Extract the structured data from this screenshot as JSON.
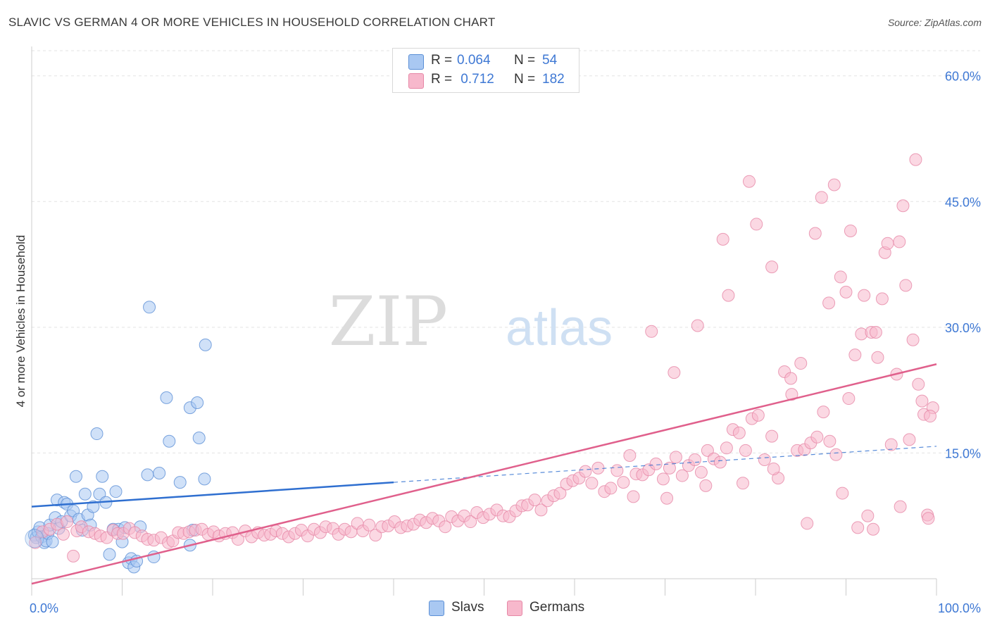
{
  "header": {
    "title": "SLAVIC VS GERMAN 4 OR MORE VEHICLES IN HOUSEHOLD CORRELATION CHART",
    "source": "Source: ZipAtlas.com"
  },
  "legend_top": {
    "rows": [
      {
        "r_label": "R = ",
        "r_value": "0.064",
        "n_label": "N = ",
        "n_value": "54",
        "color": "#a9c8f2"
      },
      {
        "r_label": "R = ",
        "r_value": " 0.712",
        "n_label": "N = ",
        "n_value": "182",
        "color": "#f7b8cc"
      }
    ]
  },
  "legend_bottom": {
    "items": [
      {
        "label": "Slavs",
        "color": "#a9c8f2"
      },
      {
        "label": "Germans",
        "color": "#f7b8cc"
      }
    ]
  },
  "chart_data": {
    "type": "scatter",
    "title": "SLAVIC VS GERMAN 4 OR MORE VEHICLES IN HOUSEHOLD CORRELATION CHART",
    "ylabel": "4 or more Vehicles in Household",
    "xlabel": "",
    "xlim": [
      0,
      100
    ],
    "ylim": [
      0,
      63
    ],
    "x_tick_labels": [
      "0.0%",
      "100.0%"
    ],
    "y_ticks": [
      15,
      30,
      45,
      60
    ],
    "y_tick_labels": [
      "15.0%",
      "30.0%",
      "45.0%",
      "60.0%"
    ],
    "grid": true,
    "watermark": {
      "zip": "ZIP",
      "atlas": "atlas"
    },
    "colors": {
      "slavs_fill": "#a9c8f2",
      "slavs_stroke": "#5b8fd6",
      "slavs_line": "#2f6fd0",
      "germans_fill": "#f7b8cc",
      "germans_stroke": "#e687a6",
      "germans_line": "#e0608c",
      "tick_label": "#3e78d4"
    },
    "series": [
      {
        "name": "Slavs",
        "trend": {
          "x": [
            0,
            40
          ],
          "y": [
            8.6,
            11.5
          ],
          "dashed_x": [
            40,
            100
          ],
          "dashed_y": [
            11.5,
            15.8
          ]
        },
        "points": [
          [
            0.3,
            5.2
          ],
          [
            0.5,
            4.9
          ],
          [
            0.7,
            5.6
          ],
          [
            0.9,
            6.1
          ],
          [
            1.1,
            5.0
          ],
          [
            1.4,
            4.3
          ],
          [
            1.6,
            4.5
          ],
          [
            1.8,
            5.4
          ],
          [
            2.0,
            6.4
          ],
          [
            2.3,
            4.4
          ],
          [
            2.6,
            7.3
          ],
          [
            2.8,
            9.4
          ],
          [
            3.0,
            6.0
          ],
          [
            3.3,
            6.8
          ],
          [
            3.6,
            9.1
          ],
          [
            3.9,
            8.9
          ],
          [
            4.3,
            7.5
          ],
          [
            4.6,
            8.1
          ],
          [
            4.9,
            12.2
          ],
          [
            5.2,
            7.1
          ],
          [
            5.6,
            5.8
          ],
          [
            5.9,
            10.1
          ],
          [
            6.2,
            7.6
          ],
          [
            6.5,
            6.4
          ],
          [
            6.8,
            8.6
          ],
          [
            7.2,
            17.3
          ],
          [
            7.5,
            10.1
          ],
          [
            7.8,
            12.2
          ],
          [
            8.2,
            9.1
          ],
          [
            8.6,
            2.9
          ],
          [
            9.0,
            5.9
          ],
          [
            9.3,
            10.4
          ],
          [
            9.6,
            5.9
          ],
          [
            10.0,
            4.4
          ],
          [
            10.3,
            6.1
          ],
          [
            10.7,
            1.9
          ],
          [
            11.0,
            2.4
          ],
          [
            11.3,
            1.4
          ],
          [
            11.6,
            2.1
          ],
          [
            12.0,
            6.2
          ],
          [
            12.8,
            12.4
          ],
          [
            13.0,
            32.4
          ],
          [
            13.5,
            2.6
          ],
          [
            14.1,
            12.6
          ],
          [
            14.9,
            21.6
          ],
          [
            15.2,
            16.4
          ],
          [
            16.4,
            11.5
          ],
          [
            17.5,
            20.4
          ],
          [
            17.5,
            4.0
          ],
          [
            17.8,
            5.8
          ],
          [
            18.3,
            21.0
          ],
          [
            18.5,
            16.8
          ],
          [
            19.1,
            11.9
          ],
          [
            19.2,
            27.9
          ]
        ]
      },
      {
        "name": "Germans",
        "trend": {
          "x": [
            0,
            100
          ],
          "y": [
            -0.6,
            25.6
          ]
        },
        "points": [
          [
            0.4,
            4.3
          ],
          [
            1.2,
            5.6
          ],
          [
            2.0,
            5.9
          ],
          [
            2.8,
            6.5
          ],
          [
            3.5,
            5.3
          ],
          [
            3.9,
            6.8
          ],
          [
            4.6,
            2.7
          ],
          [
            5.0,
            5.7
          ],
          [
            5.5,
            6.2
          ],
          [
            6.3,
            5.6
          ],
          [
            7.0,
            5.4
          ],
          [
            7.6,
            5.1
          ],
          [
            8.3,
            4.9
          ],
          [
            9.0,
            5.8
          ],
          [
            9.5,
            5.4
          ],
          [
            10.1,
            5.4
          ],
          [
            10.8,
            6.0
          ],
          [
            11.4,
            5.5
          ],
          [
            12.2,
            5.1
          ],
          [
            12.8,
            4.7
          ],
          [
            13.5,
            4.6
          ],
          [
            14.3,
            4.9
          ],
          [
            15.1,
            4.3
          ],
          [
            15.6,
            4.5
          ],
          [
            16.2,
            5.5
          ],
          [
            16.8,
            5.4
          ],
          [
            17.4,
            5.6
          ],
          [
            18.1,
            5.8
          ],
          [
            18.8,
            5.9
          ],
          [
            19.5,
            5.3
          ],
          [
            20.1,
            5.6
          ],
          [
            20.7,
            5.1
          ],
          [
            21.4,
            5.4
          ],
          [
            22.2,
            5.5
          ],
          [
            22.8,
            4.7
          ],
          [
            23.6,
            5.7
          ],
          [
            24.3,
            5.0
          ],
          [
            25.0,
            5.5
          ],
          [
            25.7,
            5.2
          ],
          [
            26.4,
            5.3
          ],
          [
            27.0,
            5.7
          ],
          [
            27.7,
            5.4
          ],
          [
            28.4,
            5.0
          ],
          [
            29.1,
            5.4
          ],
          [
            29.8,
            5.8
          ],
          [
            30.5,
            5.1
          ],
          [
            31.2,
            5.9
          ],
          [
            31.9,
            5.5
          ],
          [
            32.5,
            6.2
          ],
          [
            33.3,
            6.0
          ],
          [
            33.9,
            5.3
          ],
          [
            34.6,
            5.9
          ],
          [
            35.3,
            5.6
          ],
          [
            36.0,
            6.6
          ],
          [
            36.6,
            5.7
          ],
          [
            37.3,
            6.4
          ],
          [
            38.0,
            5.2
          ],
          [
            38.7,
            6.2
          ],
          [
            39.4,
            6.3
          ],
          [
            40.1,
            6.8
          ],
          [
            40.8,
            6.1
          ],
          [
            41.5,
            6.3
          ],
          [
            42.2,
            6.5
          ],
          [
            42.9,
            7.0
          ],
          [
            43.6,
            6.7
          ],
          [
            44.3,
            7.2
          ],
          [
            45.0,
            6.9
          ],
          [
            45.7,
            6.2
          ],
          [
            46.4,
            7.4
          ],
          [
            47.1,
            6.9
          ],
          [
            47.8,
            7.5
          ],
          [
            48.5,
            6.8
          ],
          [
            49.2,
            7.9
          ],
          [
            49.9,
            7.3
          ],
          [
            50.6,
            7.7
          ],
          [
            51.4,
            8.2
          ],
          [
            52.1,
            7.5
          ],
          [
            52.8,
            7.4
          ],
          [
            53.5,
            8.1
          ],
          [
            54.2,
            8.7
          ],
          [
            54.8,
            8.8
          ],
          [
            55.6,
            9.4
          ],
          [
            56.3,
            8.2
          ],
          [
            57.0,
            9.3
          ],
          [
            57.7,
            9.9
          ],
          [
            58.4,
            10.2
          ],
          [
            59.1,
            11.3
          ],
          [
            59.8,
            11.7
          ],
          [
            60.5,
            12.0
          ],
          [
            61.2,
            12.8
          ],
          [
            61.9,
            11.4
          ],
          [
            62.6,
            13.2
          ],
          [
            63.3,
            10.4
          ],
          [
            64.0,
            10.8
          ],
          [
            64.7,
            12.9
          ],
          [
            65.4,
            11.5
          ],
          [
            66.1,
            14.7
          ],
          [
            66.8,
            12.5
          ],
          [
            67.5,
            12.4
          ],
          [
            68.2,
            13.0
          ],
          [
            69.0,
            13.7
          ],
          [
            69.8,
            11.9
          ],
          [
            70.5,
            13.2
          ],
          [
            71.2,
            14.5
          ],
          [
            71.9,
            12.3
          ],
          [
            72.6,
            13.5
          ],
          [
            73.3,
            14.2
          ],
          [
            74.0,
            12.7
          ],
          [
            74.7,
            15.3
          ],
          [
            75.4,
            14.3
          ],
          [
            76.1,
            13.9
          ],
          [
            76.8,
            15.6
          ],
          [
            77.5,
            17.8
          ],
          [
            78.2,
            17.4
          ],
          [
            78.9,
            15.3
          ],
          [
            79.6,
            19.1
          ],
          [
            80.3,
            19.5
          ],
          [
            81.0,
            14.2
          ],
          [
            81.8,
            17.0
          ],
          [
            82.5,
            12.0
          ],
          [
            83.2,
            24.7
          ],
          [
            83.9,
            23.9
          ],
          [
            84.6,
            15.3
          ],
          [
            85.4,
            15.4
          ],
          [
            86.1,
            16.2
          ],
          [
            86.8,
            16.9
          ],
          [
            87.5,
            19.9
          ],
          [
            88.2,
            16.4
          ],
          [
            88.9,
            14.8
          ],
          [
            89.6,
            10.2
          ],
          [
            90.3,
            21.5
          ],
          [
            91.0,
            26.7
          ],
          [
            91.7,
            29.2
          ],
          [
            92.4,
            7.5
          ],
          [
            92.8,
            29.4
          ],
          [
            93.5,
            26.4
          ],
          [
            94.3,
            38.9
          ],
          [
            95.0,
            16.0
          ],
          [
            95.6,
            24.4
          ],
          [
            96.3,
            44.5
          ],
          [
            97.0,
            16.6
          ],
          [
            97.7,
            50.0
          ],
          [
            98.4,
            21.2
          ],
          [
            99.0,
            7.6
          ],
          [
            99.6,
            20.4
          ],
          [
            68.5,
            29.5
          ],
          [
            71.0,
            24.6
          ],
          [
            73.6,
            30.2
          ],
          [
            76.4,
            40.5
          ],
          [
            77.0,
            33.8
          ],
          [
            79.3,
            47.4
          ],
          [
            80.1,
            42.3
          ],
          [
            81.8,
            37.2
          ],
          [
            84.0,
            22.0
          ],
          [
            85.0,
            25.7
          ],
          [
            86.6,
            41.2
          ],
          [
            87.3,
            45.5
          ],
          [
            88.7,
            47.0
          ],
          [
            89.4,
            36.0
          ],
          [
            90.0,
            34.2
          ],
          [
            90.5,
            41.5
          ],
          [
            88.1,
            32.9
          ],
          [
            92.0,
            33.8
          ],
          [
            93.3,
            29.4
          ],
          [
            94.0,
            33.4
          ],
          [
            94.6,
            40.0
          ],
          [
            95.9,
            40.2
          ],
          [
            96.6,
            35.0
          ],
          [
            97.4,
            28.5
          ],
          [
            98.0,
            23.2
          ],
          [
            98.6,
            19.6
          ],
          [
            99.3,
            19.4
          ],
          [
            66.5,
            9.8
          ],
          [
            70.2,
            9.6
          ],
          [
            74.5,
            11.1
          ],
          [
            78.6,
            11.4
          ],
          [
            82.0,
            13.1
          ],
          [
            85.7,
            6.6
          ],
          [
            91.3,
            6.1
          ],
          [
            93.0,
            5.9
          ],
          [
            96.0,
            8.6
          ],
          [
            99.1,
            7.2
          ]
        ]
      }
    ]
  }
}
